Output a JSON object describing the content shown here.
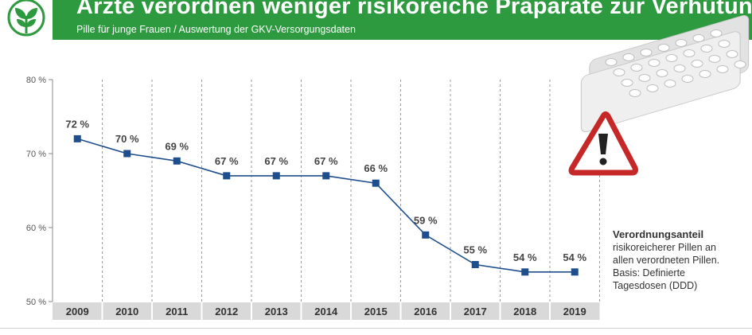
{
  "header": {
    "title": "Ärzte verordnen weniger risikoreiche Präparate zur Verhütung",
    "subtitle": "Pille für junge Frauen / Auswertung der GKV-Versorgungsdaten",
    "accent_color": "#2e9a3f",
    "logo_icon": "plant-logo-icon"
  },
  "chart_data": {
    "type": "line",
    "title": "Ärzte verordnen weniger risikoreiche Präparate zur Verhütung",
    "subtitle": "Pille für junge Frauen / Auswertung der GKV-Versorgungsdaten",
    "categories": [
      "2009",
      "2010",
      "2011",
      "2012",
      "2013",
      "2014",
      "2015",
      "2016",
      "2017",
      "2018",
      "2019"
    ],
    "series": [
      {
        "values": [
          72,
          70,
          69,
          67,
          67,
          67,
          66,
          59,
          55,
          54,
          54
        ],
        "color": "#1f4e8c"
      }
    ],
    "data_labels": [
      "72 %",
      "70 %",
      "69 %",
      "67 %",
      "67 %",
      "67 %",
      "66 %",
      "59 %",
      "55 %",
      "54 %",
      "54 %"
    ],
    "yticks": [
      50,
      60,
      70,
      80
    ],
    "ytick_labels": [
      "50 %",
      "60 %",
      "70 %",
      "80 %"
    ],
    "ylim": [
      50,
      80
    ],
    "grid": "vertical dashed",
    "xlabel": "",
    "ylabel": ""
  },
  "legend_note": {
    "title": "Verordnungsanteil",
    "body": "risikoreicherer Pillen an\nallen verordneten Pillen.\nBasis: Definierte\nTagesdosen (DDD)"
  },
  "images": {
    "pill_pack": "pill-blister-pack-icon",
    "warning": "warning-triangle-icon"
  }
}
